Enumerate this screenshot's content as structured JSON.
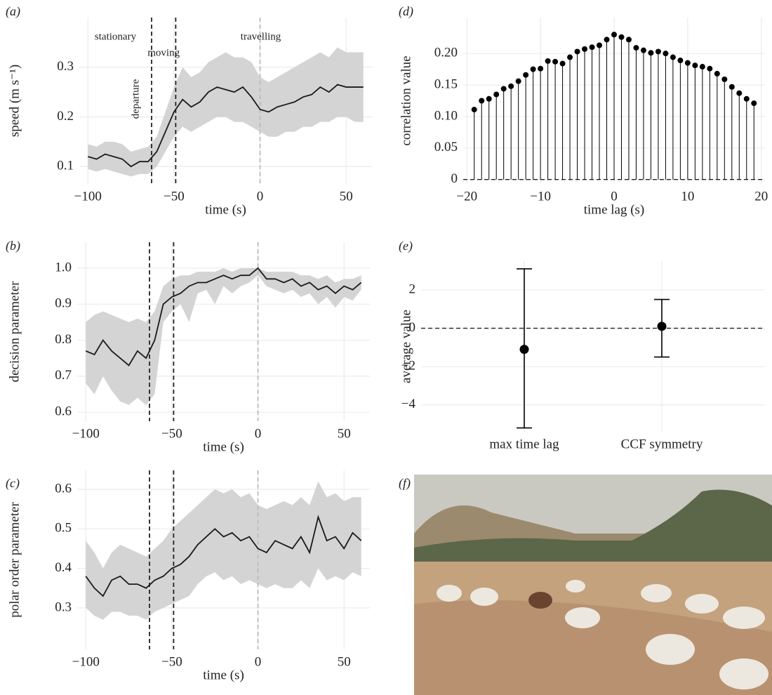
{
  "chart_data": [
    {
      "type": "line",
      "panel": "(a)",
      "xlabel": "time (s)",
      "ylabel": "speed (m s⁻¹)",
      "x": [
        -100,
        -95,
        -90,
        -85,
        -80,
        -75,
        -70,
        -65,
        -60,
        -55,
        -50,
        -45,
        -40,
        -35,
        -30,
        -25,
        -20,
        -15,
        -10,
        -5,
        0,
        5,
        10,
        15,
        20,
        25,
        30,
        35,
        40,
        45,
        50,
        55,
        60
      ],
      "values": [
        0.12,
        0.115,
        0.125,
        0.12,
        0.115,
        0.1,
        0.11,
        0.11,
        0.13,
        0.17,
        0.21,
        0.235,
        0.22,
        0.23,
        0.25,
        0.26,
        0.255,
        0.25,
        0.26,
        0.24,
        0.215,
        0.21,
        0.22,
        0.225,
        0.23,
        0.24,
        0.245,
        0.26,
        0.25,
        0.265,
        0.26,
        0.26,
        0.26
      ],
      "lower": [
        0.095,
        0.09,
        0.095,
        0.09,
        0.085,
        0.08,
        0.085,
        0.085,
        0.1,
        0.13,
        0.16,
        0.18,
        0.17,
        0.18,
        0.19,
        0.2,
        0.2,
        0.19,
        0.19,
        0.18,
        0.17,
        0.16,
        0.16,
        0.17,
        0.17,
        0.18,
        0.18,
        0.19,
        0.19,
        0.2,
        0.2,
        0.19,
        0.19
      ],
      "upper": [
        0.145,
        0.14,
        0.15,
        0.15,
        0.145,
        0.13,
        0.135,
        0.14,
        0.16,
        0.21,
        0.26,
        0.3,
        0.28,
        0.29,
        0.31,
        0.32,
        0.33,
        0.32,
        0.32,
        0.31,
        0.28,
        0.27,
        0.28,
        0.29,
        0.3,
        0.31,
        0.32,
        0.33,
        0.32,
        0.34,
        0.33,
        0.33,
        0.33
      ],
      "color": "#1a1a1a",
      "band_color": "#d4d4d4",
      "xlim": [
        -105,
        65
      ],
      "ylim": [
        0.065,
        0.4
      ],
      "xticks": [
        {
          "value": -100,
          "label": "−100"
        },
        {
          "value": -50,
          "label": "−50"
        },
        0,
        50
      ],
      "yticks": [
        0.1,
        0.2,
        0.3
      ],
      "grid": true,
      "vlines": [
        {
          "x": -63,
          "color": "#222222"
        },
        {
          "x": -49,
          "color": "#222222"
        },
        {
          "x": 0,
          "color": "#bbbbbb"
        }
      ],
      "annotations": [
        {
          "text": "stationary",
          "x": -84,
          "y": 0.36
        },
        {
          "text": "moving",
          "x": -56,
          "y": 0.328
        },
        {
          "text": "travelling",
          "x": 0.4,
          "y": 0.36
        },
        {
          "text": "departure",
          "x": -72,
          "y": 0.236,
          "rotate": true
        }
      ]
    },
    {
      "type": "line",
      "panel": "(b)",
      "xlabel": "time (s)",
      "ylabel": "decision parameter",
      "x": [
        -100,
        -95,
        -90,
        -85,
        -80,
        -75,
        -70,
        -65,
        -60,
        -55,
        -50,
        -45,
        -40,
        -35,
        -30,
        -25,
        -20,
        -15,
        -10,
        -5,
        0,
        5,
        10,
        15,
        20,
        25,
        30,
        35,
        40,
        45,
        50,
        55,
        60
      ],
      "values": [
        0.77,
        0.76,
        0.8,
        0.77,
        0.75,
        0.73,
        0.77,
        0.75,
        0.8,
        0.9,
        0.92,
        0.93,
        0.95,
        0.96,
        0.96,
        0.97,
        0.98,
        0.97,
        0.98,
        0.98,
        1.0,
        0.97,
        0.97,
        0.96,
        0.97,
        0.95,
        0.96,
        0.94,
        0.95,
        0.93,
        0.95,
        0.94,
        0.96
      ],
      "lower": [
        0.68,
        0.65,
        0.7,
        0.66,
        0.63,
        0.62,
        0.64,
        0.62,
        0.65,
        0.85,
        0.88,
        0.9,
        0.85,
        0.93,
        0.94,
        0.9,
        0.95,
        0.93,
        0.95,
        0.96,
        0.98,
        0.95,
        0.94,
        0.93,
        0.94,
        0.92,
        0.93,
        0.9,
        0.92,
        0.89,
        0.92,
        0.91,
        0.94
      ],
      "upper": [
        0.85,
        0.87,
        0.88,
        0.87,
        0.86,
        0.85,
        0.86,
        0.85,
        0.88,
        0.95,
        0.97,
        0.98,
        0.98,
        0.99,
        0.99,
        0.99,
        1.0,
        0.99,
        1.0,
        1.0,
        1.0,
        0.99,
        0.99,
        0.99,
        0.99,
        0.98,
        0.98,
        0.97,
        0.98,
        0.96,
        0.97,
        0.97,
        0.98
      ],
      "color": "#1a1a1a",
      "band_color": "#d4d4d4",
      "xlim": [
        -105,
        65
      ],
      "ylim": [
        0.575,
        1.072
      ],
      "xticks": [
        {
          "value": -100,
          "label": "−100"
        },
        {
          "value": -50,
          "label": "−50"
        },
        0,
        50
      ],
      "yticks": [
        0.6,
        0.7,
        0.8,
        0.9,
        {
          "value": 1,
          "label": "1.0"
        }
      ],
      "grid": true,
      "vlines": [
        {
          "x": -63,
          "color": "#222222"
        },
        {
          "x": -49,
          "color": "#222222"
        },
        {
          "x": 0,
          "color": "#bbbbbb"
        }
      ]
    },
    {
      "type": "line",
      "panel": "(c)",
      "xlabel": "time (s)",
      "ylabel": "polar order parameter",
      "x": [
        -100,
        -95,
        -90,
        -85,
        -80,
        -75,
        -70,
        -65,
        -60,
        -55,
        -50,
        -45,
        -40,
        -35,
        -30,
        -25,
        -20,
        -15,
        -10,
        -5,
        0,
        5,
        10,
        15,
        20,
        25,
        30,
        35,
        40,
        45,
        50,
        55,
        60
      ],
      "values": [
        0.38,
        0.35,
        0.33,
        0.37,
        0.38,
        0.36,
        0.36,
        0.35,
        0.37,
        0.38,
        0.4,
        0.41,
        0.43,
        0.46,
        0.48,
        0.5,
        0.48,
        0.49,
        0.47,
        0.48,
        0.45,
        0.44,
        0.47,
        0.46,
        0.45,
        0.48,
        0.44,
        0.53,
        0.47,
        0.48,
        0.45,
        0.49,
        0.47
      ],
      "lower": [
        0.3,
        0.28,
        0.27,
        0.29,
        0.29,
        0.28,
        0.28,
        0.27,
        0.29,
        0.3,
        0.31,
        0.32,
        0.33,
        0.36,
        0.38,
        0.39,
        0.37,
        0.38,
        0.36,
        0.37,
        0.36,
        0.35,
        0.36,
        0.35,
        0.35,
        0.37,
        0.35,
        0.4,
        0.37,
        0.38,
        0.37,
        0.39,
        0.38
      ],
      "upper": [
        0.47,
        0.44,
        0.4,
        0.44,
        0.46,
        0.45,
        0.44,
        0.43,
        0.45,
        0.47,
        0.5,
        0.52,
        0.54,
        0.56,
        0.58,
        0.6,
        0.59,
        0.6,
        0.58,
        0.59,
        0.56,
        0.55,
        0.56,
        0.57,
        0.56,
        0.58,
        0.56,
        0.62,
        0.58,
        0.59,
        0.57,
        0.58,
        0.58
      ],
      "color": "#1a1a1a",
      "band_color": "#d4d4d4",
      "xlim": [
        -105,
        65
      ],
      "ylim": [
        0.195,
        0.648
      ],
      "xticks": [
        {
          "value": -100,
          "label": "−100"
        },
        {
          "value": -50,
          "label": "−50"
        },
        0,
        50
      ],
      "yticks": [
        0.3,
        0.4,
        0.5,
        0.6
      ],
      "grid": true,
      "vlines": [
        {
          "x": -63,
          "color": "#222222"
        },
        {
          "x": -49,
          "color": "#222222"
        },
        {
          "x": 0,
          "color": "#bbbbbb"
        }
      ]
    },
    {
      "type": "stem",
      "panel": "(d)",
      "xlabel": "time lag (s)",
      "ylabel": "correlation value",
      "x": [
        -19,
        -18,
        -17,
        -16,
        -15,
        -14,
        -13,
        -12,
        -11,
        -10,
        -9,
        -8,
        -7,
        -6,
        -5,
        -4,
        -3,
        -2,
        -1,
        0,
        1,
        2,
        3,
        4,
        5,
        6,
        7,
        8,
        9,
        10,
        11,
        12,
        13,
        14,
        15,
        16,
        17,
        18,
        19
      ],
      "values": [
        0.111,
        0.125,
        0.128,
        0.135,
        0.144,
        0.148,
        0.156,
        0.166,
        0.175,
        0.176,
        0.188,
        0.187,
        0.184,
        0.194,
        0.203,
        0.207,
        0.21,
        0.213,
        0.222,
        0.23,
        0.226,
        0.222,
        0.209,
        0.205,
        0.201,
        0.203,
        0.2,
        0.194,
        0.189,
        0.185,
        0.181,
        0.179,
        0.176,
        0.168,
        0.159,
        0.147,
        0.137,
        0.128,
        0.121
      ],
      "color": "#000000",
      "hline": 0,
      "xlim": [
        -20.5,
        20.5
      ],
      "ylim": [
        -0.007,
        0.257
      ],
      "xticks": [
        {
          "value": -20,
          "label": "−20"
        },
        {
          "value": -10,
          "label": "−10"
        },
        0,
        10,
        20
      ],
      "yticks": [
        0,
        0.05,
        {
          "value": 0.1,
          "label": "0.10"
        },
        0.15,
        {
          "value": 0.2,
          "label": "0.20"
        }
      ],
      "grid": true
    },
    {
      "type": "errorbar",
      "panel": "(e)",
      "ylabel": "average value",
      "categories": [
        "max time lag",
        "CCF symmetry"
      ],
      "values": [
        -1.1,
        0.1
      ],
      "lower": [
        -5.2,
        -1.5
      ],
      "upper": [
        3.1,
        1.5
      ],
      "color": "#000000",
      "hline": 0,
      "ylim": [
        -5.4,
        3.5
      ],
      "yticks": [
        {
          "value": -4,
          "label": "−4"
        },
        {
          "value": -2,
          "label": "−2"
        },
        0,
        2
      ],
      "grid": true
    }
  ],
  "photo": {
    "panel": "(f)"
  }
}
